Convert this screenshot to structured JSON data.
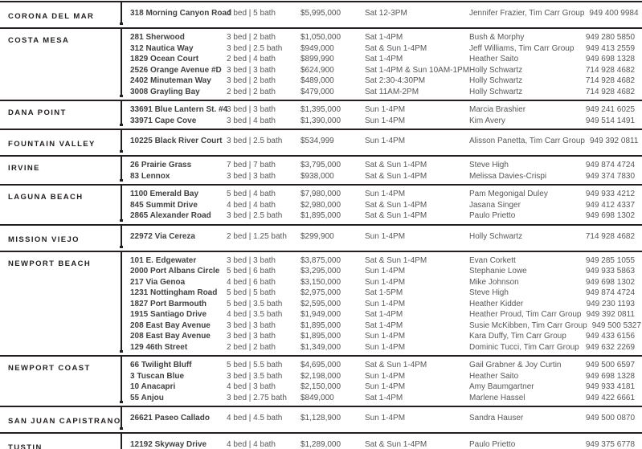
{
  "page": {
    "background": "#ffffff",
    "rule_color": "#231f20",
    "bottom_rule_color": "#9b9da0",
    "city_color": "#231f20",
    "address_color": "#414042",
    "text_color": "#56575a"
  },
  "sections": [
    {
      "city": "CORONA DEL MAR",
      "listings": [
        {
          "address": "318 Morning Canyon Road",
          "bedbath": "4 bed | 5 bath",
          "price": "$5,995,000",
          "time": "Sat 12-3PM",
          "agent": "Jennifer Frazier, Tim Carr Group",
          "phone": "949 400 9984"
        }
      ]
    },
    {
      "city": "COSTA MESA",
      "listings": [
        {
          "address": "281 Sherwood",
          "bedbath": "3 bed | 2 bath",
          "price": "$1,050,000",
          "time": "Sat 1-4PM",
          "agent": "Bush & Morphy",
          "phone": "949 280 5850"
        },
        {
          "address": "312 Nautica Way",
          "bedbath": "3 bed | 2.5 bath",
          "price": "$949,000",
          "time": "Sat & Sun 1-4PM",
          "agent": "Jeff Williams, Tim Carr Group",
          "phone": "949 413 2559"
        },
        {
          "address": "1829 Ocean Court",
          "bedbath": "2 bed | 4 bath",
          "price": "$899,990",
          "time": "Sat 1-4PM",
          "agent": "Heather Saito",
          "phone": "949 698 1328"
        },
        {
          "address": "2526 Orange Avenue #D",
          "bedbath": "3 bed | 3 bath",
          "price": "$624,900",
          "time": "Sat 1-4PM & Sun 10AM-1PM",
          "agent": "Holly Schwartz",
          "phone": "714 928 4682"
        },
        {
          "address": "2402 Minuteman Way",
          "bedbath": "3 bed | 2 bath",
          "price": "$489,000",
          "time": "Sat 2:30-4:30PM",
          "agent": "Holly Schwartz",
          "phone": "714 928 4682"
        },
        {
          "address": "3008 Grayling Bay",
          "bedbath": "2 bed | 2 bath",
          "price": "$479,000",
          "time": "Sat 11AM-2PM",
          "agent": "Holly Schwartz",
          "phone": "714 928 4682"
        }
      ]
    },
    {
      "city": "DANA POINT",
      "listings": [
        {
          "address": "33691 Blue Lantern St. #4",
          "bedbath": "3 bed | 3 bath",
          "price": "$1,395,000",
          "time": "Sun 1-4PM",
          "agent": "Marcia Brashier",
          "phone": "949 241 6025"
        },
        {
          "address": "33971 Cape Cove",
          "bedbath": "3 bed | 4 bath",
          "price": "$1,390,000",
          "time": "Sun 1-4PM",
          "agent": "Kim Avery",
          "phone": "949 514 1491"
        }
      ]
    },
    {
      "city": "FOUNTAIN VALLEY",
      "listings": [
        {
          "address": "10225 Black River Court",
          "bedbath": "3 bed | 2.5 bath",
          "price": "$534,999",
          "time": "Sun 1-4PM",
          "agent": "Alisson Panetta, Tim Carr Group",
          "phone": "949 392 0811"
        }
      ]
    },
    {
      "city": "IRVINE",
      "listings": [
        {
          "address": "26 Prairie Grass",
          "bedbath": "7 bed | 7 bath",
          "price": "$3,795,000",
          "time": "Sat & Sun 1-4PM",
          "agent": "Steve High",
          "phone": "949 874 4724"
        },
        {
          "address": "83 Lennox",
          "bedbath": "3 bed | 3 bath",
          "price": "$938,000",
          "time": "Sat & Sun 1-4PM",
          "agent": "Melissa Davies-Crispi",
          "phone": "949 374 7830"
        }
      ]
    },
    {
      "city": "LAGUNA BEACH",
      "listings": [
        {
          "address": "1100 Emerald Bay",
          "bedbath": "5 bed | 4 bath",
          "price": "$7,980,000",
          "time": "Sun 1-4PM",
          "agent": "Pam Megonigal Duley",
          "phone": "949 933 4212"
        },
        {
          "address": "845 Summit Drive",
          "bedbath": "4 bed | 4 bath",
          "price": "$2,980,000",
          "time": "Sat & Sun 1-4PM",
          "agent": "Jasana Singer",
          "phone": "949 412 4337"
        },
        {
          "address": "2865 Alexander Road",
          "bedbath": "3 bed | 2.5 bath",
          "price": "$1,895,000",
          "time": "Sat & Sun 1-4PM",
          "agent": "Paulo Prietto",
          "phone": "949 698 1302"
        }
      ]
    },
    {
      "city": "MISSION VIEJO",
      "listings": [
        {
          "address": "22972 Via Cereza",
          "bedbath": "2 bed | 1.25 bath",
          "price": "$299,900",
          "time": "Sun 1-4PM",
          "agent": "Holly Schwartz",
          "phone": "714 928 4682"
        }
      ]
    },
    {
      "city": "NEWPORT BEACH",
      "listings": [
        {
          "address": "101 E. Edgewater",
          "bedbath": "3 bed | 3 bath",
          "price": "$3,875,000",
          "time": "Sat & Sun 1-4PM",
          "agent": "Evan Corkett",
          "phone": "949 285 1055"
        },
        {
          "address": "2000 Port Albans Circle",
          "bedbath": "5 bed | 6 bath",
          "price": "$3,295,000",
          "time": "Sun 1-4PM",
          "agent": "Stephanie Lowe",
          "phone": "949 933 5863"
        },
        {
          "address": "217 Via Genoa",
          "bedbath": "4 bed | 6 bath",
          "price": "$3,150,000",
          "time": "Sun 1-4PM",
          "agent": "Mike Johnson",
          "phone": "949 698 1302"
        },
        {
          "address": "1231 Nottingham Road",
          "bedbath": "5 bed | 5 bath",
          "price": "$2,975,000",
          "time": "Sat 1-5PM",
          "agent": "Steve High",
          "phone": "949 874 4724"
        },
        {
          "address": "1827 Port Barmouth",
          "bedbath": "5 bed | 3.5 bath",
          "price": "$2,595,000",
          "time": "Sun 1-4PM",
          "agent": "Heather Kidder",
          "phone": "949 230 1193"
        },
        {
          "address": "1915 Santiago Drive",
          "bedbath": "4 bed | 3.5 bath",
          "price": "$1,949,000",
          "time": "Sat 1-4PM",
          "agent": "Heather Proud, Tim Carr Group",
          "phone": "949 392 0811"
        },
        {
          "address": "208 East Bay Avenue",
          "bedbath": "3 bed | 3 bath",
          "price": "$1,895,000",
          "time": "Sat 1-4PM",
          "agent": "Susie McKibben, Tim Carr Group",
          "phone": "949 500 5327"
        },
        {
          "address": "208 East Bay Avenue",
          "bedbath": "3 bed | 3 bath",
          "price": "$1,895,000",
          "time": "Sun 1-4PM",
          "agent": "Kara Duffy, Tim Carr Group",
          "phone": "949 433 6156"
        },
        {
          "address": "129 46th Street",
          "bedbath": "2 bed | 2 bath",
          "price": "$1,349,000",
          "time": "Sun 1-4PM",
          "agent": "Dominic Tucci, Tim Carr Group",
          "phone": "949 632 2269"
        }
      ]
    },
    {
      "city": "NEWPORT COAST",
      "listings": [
        {
          "address": "66 Twilight Bluff",
          "bedbath": "5 bed | 5.5 bath",
          "price": "$4,695,000",
          "time": "Sat & Sun 1-4PM",
          "agent": "Gail Grabner & Joy Curtin",
          "phone": "949 500 6597"
        },
        {
          "address": "3 Tuscan Blue",
          "bedbath": "3 bed | 3.5 bath",
          "price": "$2,198,000",
          "time": "Sun 1-4PM",
          "agent": "Heather Saito",
          "phone": "949 698 1328"
        },
        {
          "address": "10 Anacapri",
          "bedbath": "4 bed | 3 bath",
          "price": "$2,150,000",
          "time": "Sun 1-4PM",
          "agent": "Amy Baumgartner",
          "phone": "949 933 4181"
        },
        {
          "address": "55 Anjou",
          "bedbath": "3 bed | 2.75 bath",
          "price": "$849,000",
          "time": "Sat 1-4PM",
          "agent": "Marlene Hassel",
          "phone": "949 422 6661"
        }
      ]
    },
    {
      "city": "SAN JUAN CAPISTRANO",
      "listings": [
        {
          "address": "26621 Paseo Callado",
          "bedbath": "4 bed | 4.5 bath",
          "price": "$1,128,900",
          "time": "Sun 1-4PM",
          "agent": "Sandra Hauser",
          "phone": "949 500 0870"
        }
      ]
    },
    {
      "city": "TUSTIN",
      "listings": [
        {
          "address": "12192 Skyway Drive",
          "bedbath": "4 bed | 4 bath",
          "price": "$1,289,000",
          "time": "Sat & Sun 1-4PM",
          "agent": "Paulo Prietto",
          "phone": "949 375 6778"
        }
      ]
    }
  ]
}
